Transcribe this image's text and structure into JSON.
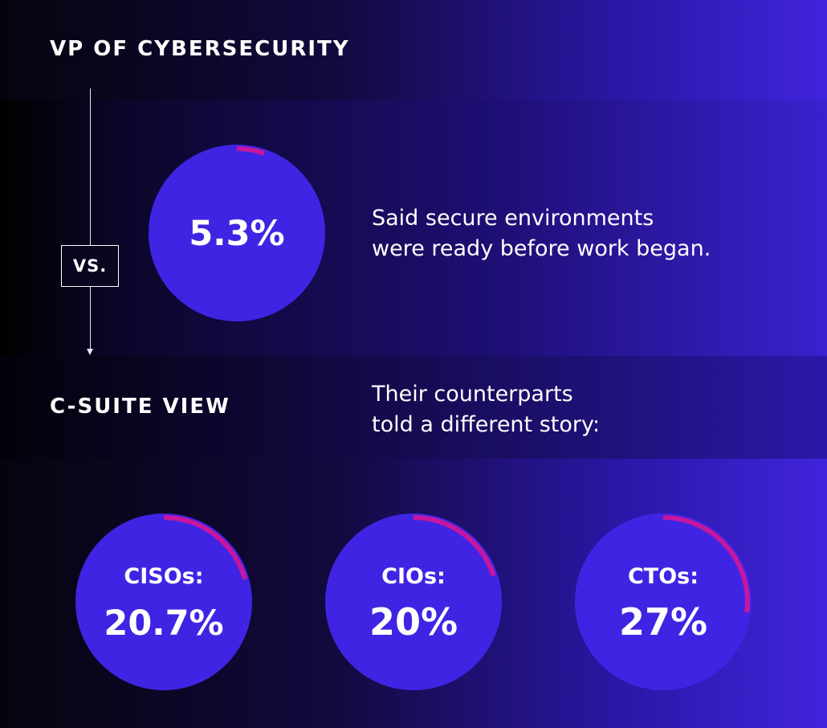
{
  "sections": {
    "vp": {
      "heading": "VP OF CYBERSECURITY",
      "caption_line1": "Said secure environments",
      "caption_line2": "were ready before work began."
    },
    "vs_label": "VS.",
    "csuite": {
      "heading": "C-SUITE VIEW",
      "caption_line1": "Their counterparts",
      "caption_line2": "told a different story:"
    }
  },
  "colors": {
    "circle_fill": "#3f25e3",
    "arc": "#c7169f",
    "text": "#ffffff"
  },
  "chart_data": {
    "type": "pie",
    "charts": [
      {
        "id": "vp",
        "label": "",
        "value": 5.3,
        "display": "5.3%"
      },
      {
        "id": "cisos",
        "label": "CISOs:",
        "value": 20.7,
        "display": "20.7%"
      },
      {
        "id": "cios",
        "label": "CIOs:",
        "value": 20,
        "display": "20%"
      },
      {
        "id": "ctos",
        "label": "CTOs:",
        "value": 27,
        "display": "27%"
      }
    ]
  }
}
